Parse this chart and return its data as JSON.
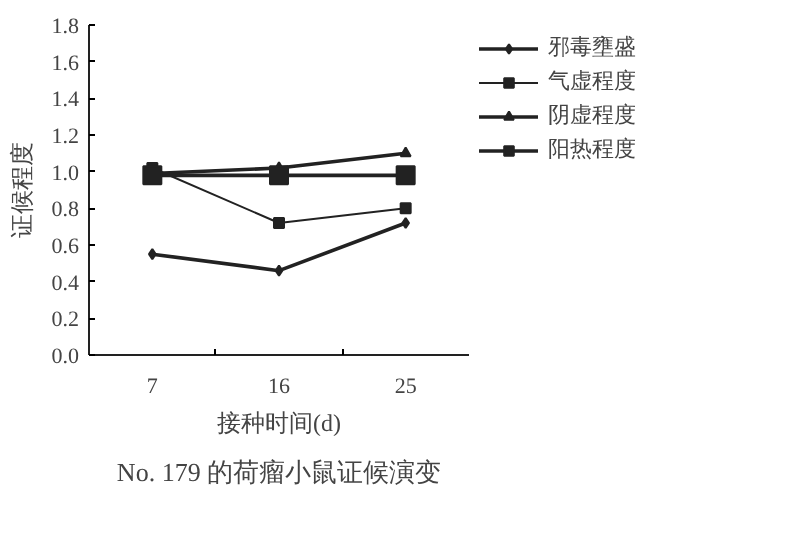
{
  "chart_data": {
    "type": "line",
    "title": "No. 179 的荷瘤小鼠证候演变",
    "xlabel": "接种时间(d)",
    "ylabel": "证候程度",
    "categories": [
      "7",
      "16",
      "25"
    ],
    "ylim": [
      0,
      1.8
    ],
    "yticks": [
      {
        "value": 0,
        "label": "0.0"
      },
      0.2,
      0.4,
      0.6,
      0.8,
      {
        "value": 1,
        "label": "1.0"
      },
      1.2,
      1.4,
      1.6,
      1.8
    ],
    "series": [
      {
        "name": "邪毒壅盛",
        "color": "#222222",
        "marker": "diamond",
        "values": [
          0.55,
          0.46,
          0.72
        ]
      },
      {
        "name": "气虚程度",
        "color": "#222222",
        "marker": "square",
        "values": [
          1.02,
          0.72,
          0.8
        ]
      },
      {
        "name": "阴虚程度",
        "color": "#222222",
        "marker": "triangle",
        "values": [
          0.99,
          1.02,
          1.1
        ]
      },
      {
        "name": "阳热程度",
        "color": "#222222",
        "marker": "square",
        "values": [
          0.98,
          0.98,
          0.98
        ]
      }
    ],
    "legend": "right",
    "grid": false
  }
}
